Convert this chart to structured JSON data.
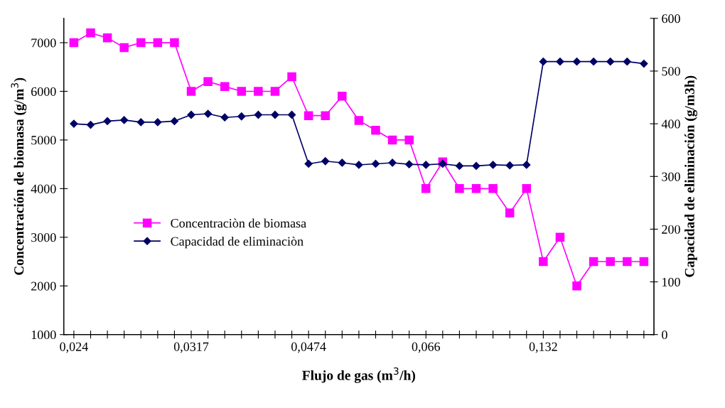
{
  "chart_data": {
    "type": "line",
    "xlabel": "Flujo de gas (m$^{3}$/h)",
    "ylabel": "Concentración de biomasa (g/m$^{3}$)",
    "y2label": "Capacidad de eliminación (g/m3h)",
    "categories": [
      "0,024",
      null,
      null,
      null,
      null,
      null,
      null,
      "0,0317",
      null,
      null,
      null,
      null,
      null,
      null,
      "0,0474",
      null,
      null,
      null,
      null,
      null,
      null,
      "0,066",
      null,
      null,
      null,
      null,
      null,
      null,
      "0,132",
      null,
      null,
      null,
      null,
      null,
      null
    ],
    "series": [
      {
        "name": "Concentraciòn de biomasa",
        "color": "#ff00ff",
        "marker": "square",
        "values": [
          7000,
          7200,
          7100,
          6900,
          7000,
          7000,
          7000,
          6000,
          6200,
          6100,
          6000,
          6000,
          6000,
          6300,
          5500,
          5500,
          5900,
          5400,
          5200,
          5000,
          5000,
          4000,
          4550,
          4000,
          4000,
          4000,
          3500,
          4000,
          2500,
          3000,
          2000,
          2500,
          2500,
          2500,
          2500
        ]
      },
      {
        "name": "Capacidad de eliminaciòn",
        "color": "#000066",
        "marker": "diamond",
        "axis": "y2",
        "values": [
          400,
          398,
          405,
          407,
          403,
          403,
          405,
          417,
          419,
          412,
          414,
          417,
          417,
          417,
          324,
          329,
          326,
          322,
          324,
          326,
          323,
          322,
          324,
          320,
          320,
          322,
          321,
          322,
          518,
          518,
          518,
          518,
          518,
          518,
          514
        ]
      }
    ],
    "ylim": [
      1000,
      7500
    ],
    "yticks": [
      1000,
      2000,
      3000,
      4000,
      5000,
      6000,
      7000
    ],
    "y2lim": [
      0,
      600
    ],
    "y2ticks": [
      0,
      100,
      200,
      300,
      400,
      500,
      600
    ],
    "legend": "center",
    "grid": false
  }
}
